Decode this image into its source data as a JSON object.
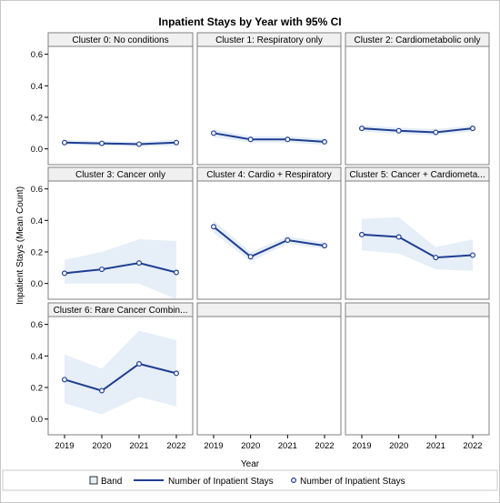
{
  "chart_data": {
    "type": "line",
    "title": "Inpatient Stays by Year with 95% CI",
    "xlabel": "Year",
    "ylabel": "Inpatient Stays (Mean Count)",
    "x": [
      2019,
      2020,
      2021,
      2022
    ],
    "x_tick_labels": [
      "2019",
      "2020",
      "2021",
      "2022"
    ],
    "ylim": [
      -0.1,
      0.65
    ],
    "y_ticks": [
      0.0,
      0.2,
      0.4,
      0.6
    ],
    "y_tick_labels": [
      "0.0",
      "0.2",
      "0.4",
      "0.6"
    ],
    "layout": "3x3 panel grid, last two panels empty",
    "grid": false,
    "colors": {
      "line": "#1f3f91",
      "band": "#e6eef8",
      "marker_fill": "#ffffff",
      "frame": "#7f7f7f",
      "header_bg": "#f0f0f0"
    },
    "panels": [
      {
        "title": "Cluster 0: No conditions",
        "values": [
          0.04,
          0.035,
          0.03,
          0.04
        ],
        "lower": [
          0.025,
          0.02,
          0.015,
          0.02
        ],
        "upper": [
          0.055,
          0.05,
          0.045,
          0.06
        ]
      },
      {
        "title": "Cluster 1: Respiratory only",
        "values": [
          0.1,
          0.06,
          0.06,
          0.045
        ],
        "lower": [
          0.075,
          0.04,
          0.04,
          0.025
        ],
        "upper": [
          0.125,
          0.08,
          0.08,
          0.065
        ]
      },
      {
        "title": "Cluster 2: Cardiometabolic only",
        "values": [
          0.13,
          0.115,
          0.105,
          0.13
        ],
        "lower": [
          0.11,
          0.095,
          0.085,
          0.11
        ],
        "upper": [
          0.15,
          0.135,
          0.125,
          0.15
        ]
      },
      {
        "title": "Cluster 3: Cancer only",
        "values": [
          0.065,
          0.09,
          0.13,
          0.07
        ],
        "lower": [
          0.0,
          0.0,
          0.0,
          -0.1
        ],
        "upper": [
          0.15,
          0.2,
          0.28,
          0.27
        ]
      },
      {
        "title": "Cluster 4: Cardio + Respiratory",
        "values": [
          0.36,
          0.17,
          0.275,
          0.24
        ],
        "lower": [
          0.32,
          0.14,
          0.25,
          0.22
        ],
        "upper": [
          0.4,
          0.2,
          0.3,
          0.26
        ]
      },
      {
        "title": "Cluster 5: Cancer + Cardiometa...",
        "values": [
          0.31,
          0.295,
          0.165,
          0.18
        ],
        "lower": [
          0.21,
          0.19,
          0.09,
          0.08
        ],
        "upper": [
          0.41,
          0.42,
          0.23,
          0.28
        ]
      },
      {
        "title": "Cluster 6: Rare Cancer Combin...",
        "values": [
          0.25,
          0.18,
          0.35,
          0.29
        ],
        "lower": [
          0.1,
          0.03,
          0.14,
          0.08
        ],
        "upper": [
          0.41,
          0.32,
          0.56,
          0.5
        ]
      },
      {
        "title": "",
        "values": [],
        "lower": [],
        "upper": []
      },
      {
        "title": "",
        "values": [],
        "lower": [],
        "upper": []
      }
    ],
    "legend": {
      "position": "bottom",
      "items": [
        {
          "label": "Band",
          "kind": "band"
        },
        {
          "label": "Number of Inpatient Stays",
          "kind": "line"
        },
        {
          "label": "Number of Inpatient Stays",
          "kind": "marker"
        }
      ]
    }
  }
}
